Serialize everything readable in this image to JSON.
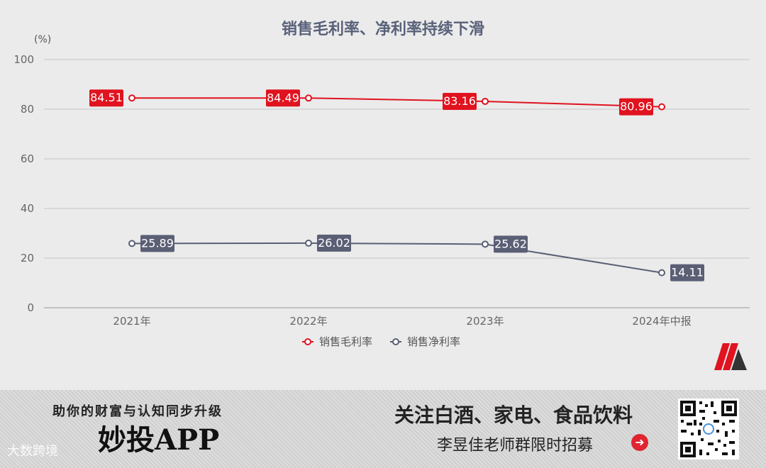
{
  "chart_data": {
    "type": "line",
    "title": "销售毛利率、净利率持续下滑",
    "ylabel": "(%)",
    "ylim": [
      0,
      100
    ],
    "yticks": [
      "0",
      "20",
      "40",
      "60",
      "80",
      "100"
    ],
    "categories": [
      "2021年",
      "2022年",
      "2023年",
      "2024年中报"
    ],
    "series": [
      {
        "name": "销售毛利率",
        "values": [
          84.51,
          84.49,
          83.16,
          80.96
        ],
        "labels": [
          "84.51",
          "84.49",
          "83.16",
          "80.96"
        ],
        "color": "#e0131f"
      },
      {
        "name": "销售净利率",
        "values": [
          25.89,
          26.02,
          25.62,
          14.11
        ],
        "labels": [
          "25.89",
          "26.02",
          "25.62",
          "14.11"
        ],
        "color": "#5b5f75"
      }
    ],
    "grid": true,
    "legend": "bottom-center"
  },
  "banner": {
    "tagline": "助你的财富与认知同步升级",
    "app_name": "妙投APP",
    "follow_text": "关注白酒、家电、食品饮料",
    "recruit_text": "李昱佳老师群限时招募",
    "watermark": "大数跨境",
    "arrow_icon": "➜"
  }
}
